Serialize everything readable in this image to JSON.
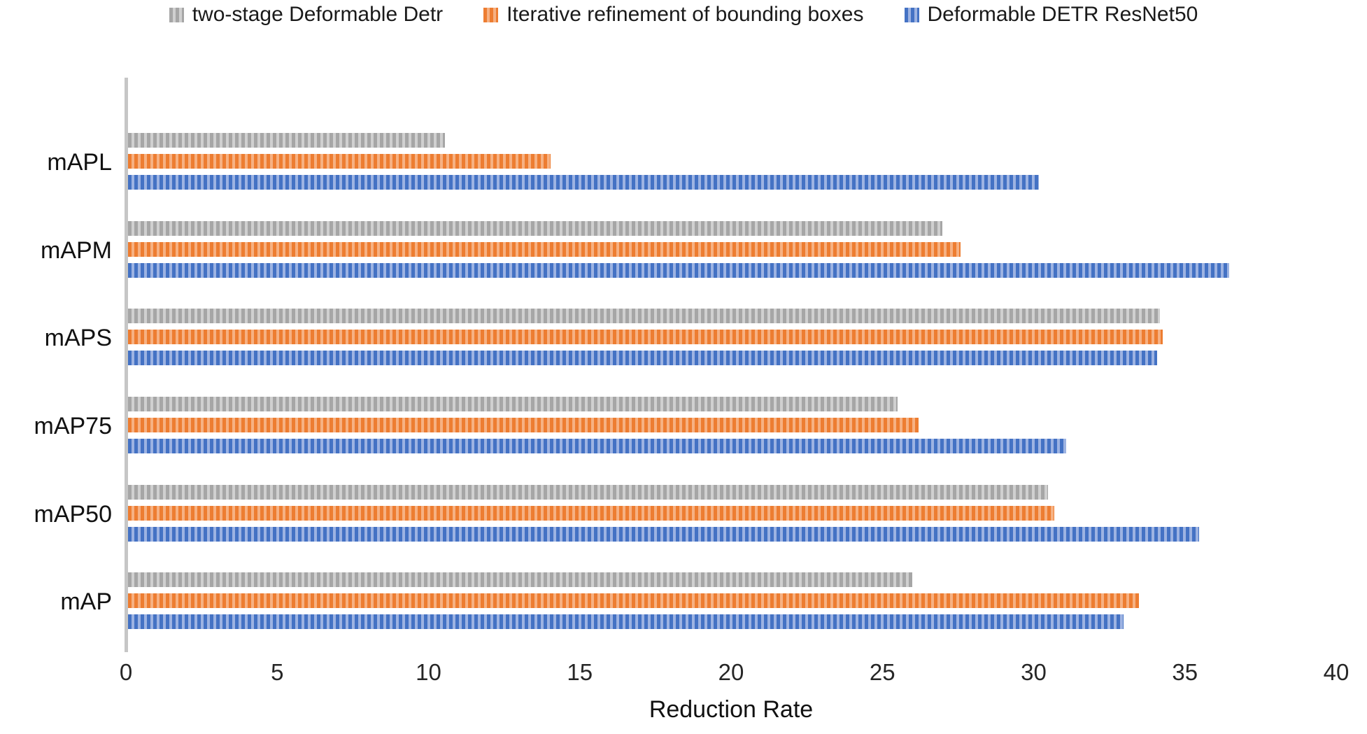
{
  "chart_data": {
    "type": "bar",
    "orientation": "horizontal",
    "title": "",
    "xlabel": "Reduction Rate",
    "ylabel": "",
    "xlim": [
      0,
      40
    ],
    "xticks": [
      0,
      5,
      10,
      15,
      20,
      25,
      30,
      35,
      40
    ],
    "grid": "off",
    "legend_position": "top",
    "categories": [
      "mAPL",
      "mAPM",
      "mAPS",
      "mAP75",
      "mAP50",
      "mAP"
    ],
    "series": [
      {
        "name": "two-stage Deformable Detr",
        "key": "two-stage-deformable-detr",
        "color": "#a6a6a6",
        "stripe_color": "#d0d0d0",
        "values": [
          10.5,
          27.0,
          34.2,
          25.5,
          30.5,
          26.0
        ]
      },
      {
        "name": "Iterative refinement of bounding boxes",
        "key": "iterative-refinement",
        "color": "#ed7d31",
        "stripe_color": "#f6b183",
        "values": [
          14.0,
          27.6,
          34.3,
          26.2,
          30.7,
          33.5
        ]
      },
      {
        "name": "Deformable DETR ResNet50",
        "key": "deformable-detr-resnet50",
        "color": "#4472c4",
        "stripe_color": "#9db3e2",
        "values": [
          30.2,
          36.5,
          34.1,
          31.1,
          35.5,
          33.0
        ]
      }
    ],
    "axis_line_color": "#c6c6c6",
    "text_color": "#262626",
    "background_color": "#ffffff"
  }
}
